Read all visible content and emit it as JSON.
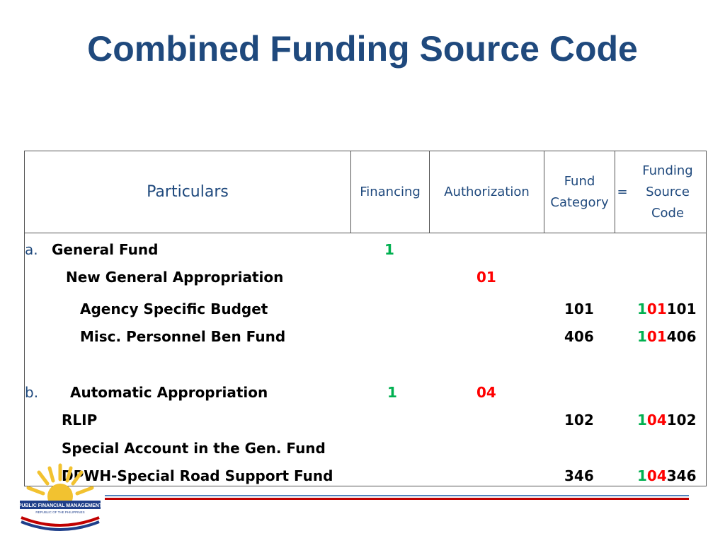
{
  "title": "Combined Funding Source Code",
  "header": {
    "particulars": "Particulars",
    "financing": "Financing",
    "authorization": "Authorization",
    "fund_category_1": "Fund",
    "fund_category_2": "Category",
    "equals": "=",
    "funding_1": "Funding",
    "funding_2": "Source",
    "funding_3": "Code"
  },
  "rows": {
    "a_letter": "a.",
    "a_label": "General Fund",
    "a_financing": "1",
    "nga_label": "New General Appropriation",
    "nga_authorization": "01",
    "asb_label": "Agency Specific Budget",
    "asb_category": "101",
    "asb_code_fin": "1",
    "asb_code_auth": "01",
    "asb_code_cat": "101",
    "mpb_label": "Misc. Personnel Ben Fund",
    "mpb_category": "406",
    "mpb_code_fin": "1",
    "mpb_code_auth": "01",
    "mpb_code_cat": "406",
    "b_letter": "b.",
    "b_label": "Automatic Appropriation",
    "b_financing": "1",
    "b_authorization": "04",
    "rlip_label": "RLIP",
    "rlip_category": "102",
    "rlip_code_fin": "1",
    "rlip_code_auth": "04",
    "rlip_code_cat": "102",
    "sa_label": "Special Account in the Gen. Fund",
    "dpwh_label": "DPWH-Special Road Support Fund",
    "dpwh_category": "346",
    "dpwh_code_fin": "1",
    "dpwh_code_auth": "04",
    "dpwh_code_cat": "346"
  },
  "logo": {
    "text_main": "PUBLIC FINANCIAL MANAGEMENT",
    "text_sub": "REPUBLIC OF THE PHILIPPINES"
  },
  "colors": {
    "title": "#1F497D",
    "financing_digit": "#00B050",
    "authorization_digit": "#FF0000",
    "stripe_blue": "#4F81BD",
    "stripe_red": "#C00000"
  }
}
